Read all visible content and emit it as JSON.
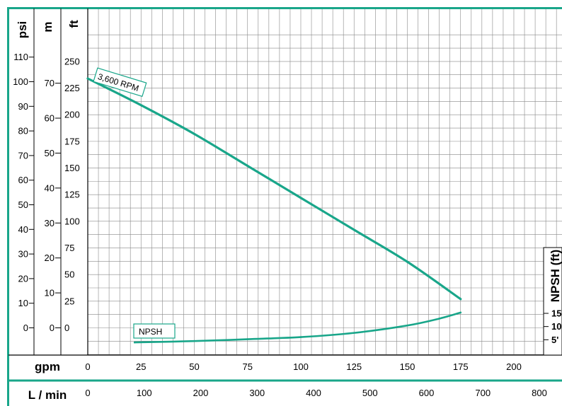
{
  "chart_data": {
    "type": "line",
    "colors": {
      "frame": "#19a68a",
      "curve": "#19a68a",
      "grid": "#888888",
      "axis": "#000000"
    },
    "units": {
      "psi": "psi",
      "m": "m",
      "ft": "ft",
      "npsh": "NPSH (ft)"
    },
    "axis_labels": {
      "gpm": "gpm",
      "lpm": "L / min"
    },
    "x_gpm": {
      "range": [
        0,
        225
      ],
      "ticks": [
        "0",
        "25",
        "50",
        "75",
        "100",
        "125",
        "150",
        "175",
        "200"
      ]
    },
    "x_lpm": {
      "ticks": [
        "0",
        "100",
        "200",
        "300",
        "400",
        "500",
        "600",
        "700",
        "800"
      ]
    },
    "y_ft": {
      "range": [
        -25,
        300
      ],
      "ticks": [
        "0",
        "25",
        "50",
        "75",
        "100",
        "125",
        "150",
        "175",
        "200",
        "225",
        "250"
      ]
    },
    "y_psi": {
      "ticks": [
        "0",
        "10",
        "20",
        "30",
        "40",
        "50",
        "60",
        "70",
        "80",
        "90",
        "100",
        "110"
      ]
    },
    "y_m": {
      "ticks": [
        "0",
        "10",
        "20",
        "30",
        "40",
        "50",
        "60",
        "70"
      ]
    },
    "y_npsh": {
      "ticks": [
        "5'",
        "10",
        "15"
      ]
    },
    "series": [
      {
        "name": "3,600 RPM",
        "x": [
          0,
          25,
          50,
          75,
          100,
          125,
          150,
          175
        ],
        "y": [
          234,
          209,
          182,
          152,
          122,
          92,
          62,
          27
        ]
      },
      {
        "name": "NPSH",
        "x": [
          22,
          50,
          75,
          100,
          125,
          150,
          165,
          175
        ],
        "npsh_ft": [
          4.0,
          4.5,
          5.2,
          6.0,
          7.6,
          10.4,
          13.0,
          15.3
        ]
      }
    ]
  }
}
